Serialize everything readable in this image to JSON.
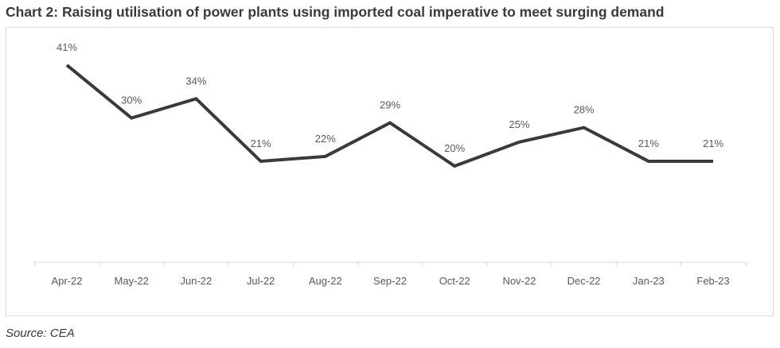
{
  "chart_data": {
    "type": "line",
    "title": "Chart 2: Raising utilisation of power plants using imported coal imperative to meet surging demand",
    "categories": [
      "Apr-22",
      "May-22",
      "Jun-22",
      "Jul-22",
      "Aug-22",
      "Sep-22",
      "Oct-22",
      "Nov-22",
      "Dec-22",
      "Jan-23",
      "Feb-23"
    ],
    "series": [
      {
        "name": "Utilisation",
        "values": [
          41,
          30,
          34,
          21,
          22,
          29,
          20,
          25,
          28,
          21,
          21
        ],
        "labels": [
          "41%",
          "30%",
          "34%",
          "21%",
          "22%",
          "29%",
          "20%",
          "25%",
          "28%",
          "21%",
          "21%"
        ],
        "color": "#3a3a3a"
      }
    ],
    "ylim": [
      0,
      45
    ],
    "xlabel": "",
    "ylabel": "",
    "grid": false,
    "legend": "none"
  },
  "source": "Source: CEA"
}
